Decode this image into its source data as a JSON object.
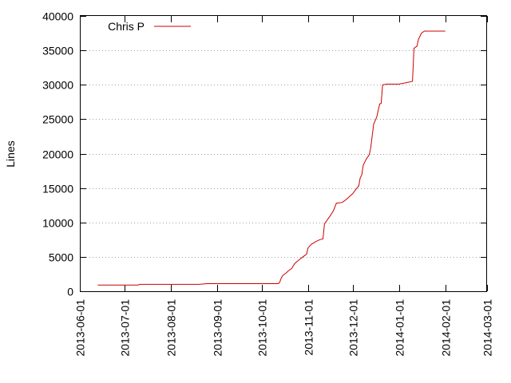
{
  "chart_data": {
    "type": "line",
    "title": "",
    "xlabel": "",
    "ylabel": "Lines",
    "ylim": [
      0,
      40000
    ],
    "xlim": [
      "2013-06-01",
      "2014-03-01"
    ],
    "yticks": [
      0,
      5000,
      10000,
      15000,
      20000,
      25000,
      30000,
      35000,
      40000
    ],
    "xticks": [
      "2013-06-01",
      "2013-07-01",
      "2013-08-01",
      "2013-09-01",
      "2013-10-01",
      "2013-11-01",
      "2013-12-01",
      "2014-01-01",
      "2014-02-01",
      "2014-03-01"
    ],
    "grid": true,
    "legend": "top-left",
    "series": [
      {
        "name": "Chris P",
        "color": "#cc0000",
        "points": [
          [
            "2013-06-13",
            900
          ],
          [
            "2013-07-10",
            900
          ],
          [
            "2013-07-11",
            1000
          ],
          [
            "2013-08-20",
            1000
          ],
          [
            "2013-08-25",
            1100
          ],
          [
            "2013-10-12",
            1100
          ],
          [
            "2013-10-13",
            1300
          ],
          [
            "2013-10-14",
            1900
          ],
          [
            "2013-10-15",
            2300
          ],
          [
            "2013-10-17",
            2600
          ],
          [
            "2013-10-19",
            3000
          ],
          [
            "2013-10-21",
            3300
          ],
          [
            "2013-10-23",
            4000
          ],
          [
            "2013-10-25",
            4400
          ],
          [
            "2013-10-28",
            4900
          ],
          [
            "2013-10-31",
            5400
          ],
          [
            "2013-11-01",
            6300
          ],
          [
            "2013-11-03",
            6800
          ],
          [
            "2013-11-06",
            7200
          ],
          [
            "2013-11-09",
            7500
          ],
          [
            "2013-11-11",
            7600
          ],
          [
            "2013-11-12",
            9800
          ],
          [
            "2013-11-14",
            10400
          ],
          [
            "2013-11-16",
            11000
          ],
          [
            "2013-11-18",
            11700
          ],
          [
            "2013-11-20",
            12800
          ],
          [
            "2013-11-24",
            12900
          ],
          [
            "2013-11-27",
            13400
          ],
          [
            "2013-11-29",
            13800
          ],
          [
            "2013-12-01",
            14200
          ],
          [
            "2013-12-03",
            14800
          ],
          [
            "2013-12-05",
            15300
          ],
          [
            "2013-12-06",
            16500
          ],
          [
            "2013-12-07",
            16900
          ],
          [
            "2013-12-08",
            18300
          ],
          [
            "2013-12-10",
            19200
          ],
          [
            "2013-12-12",
            19800
          ],
          [
            "2013-12-13",
            20800
          ],
          [
            "2013-12-14",
            22600
          ],
          [
            "2013-12-15",
            24300
          ],
          [
            "2013-12-17",
            25300
          ],
          [
            "2013-12-19",
            27200
          ],
          [
            "2013-12-20",
            27300
          ],
          [
            "2013-12-21",
            30000
          ],
          [
            "2013-12-24",
            30100
          ],
          [
            "2014-01-01",
            30100
          ],
          [
            "2014-01-08",
            30400
          ],
          [
            "2014-01-10",
            30500
          ],
          [
            "2014-01-11",
            35300
          ],
          [
            "2014-01-13",
            35600
          ],
          [
            "2014-01-14",
            36600
          ],
          [
            "2014-01-16",
            37500
          ],
          [
            "2014-01-18",
            37800
          ],
          [
            "2014-02-01",
            37800
          ]
        ]
      }
    ]
  }
}
